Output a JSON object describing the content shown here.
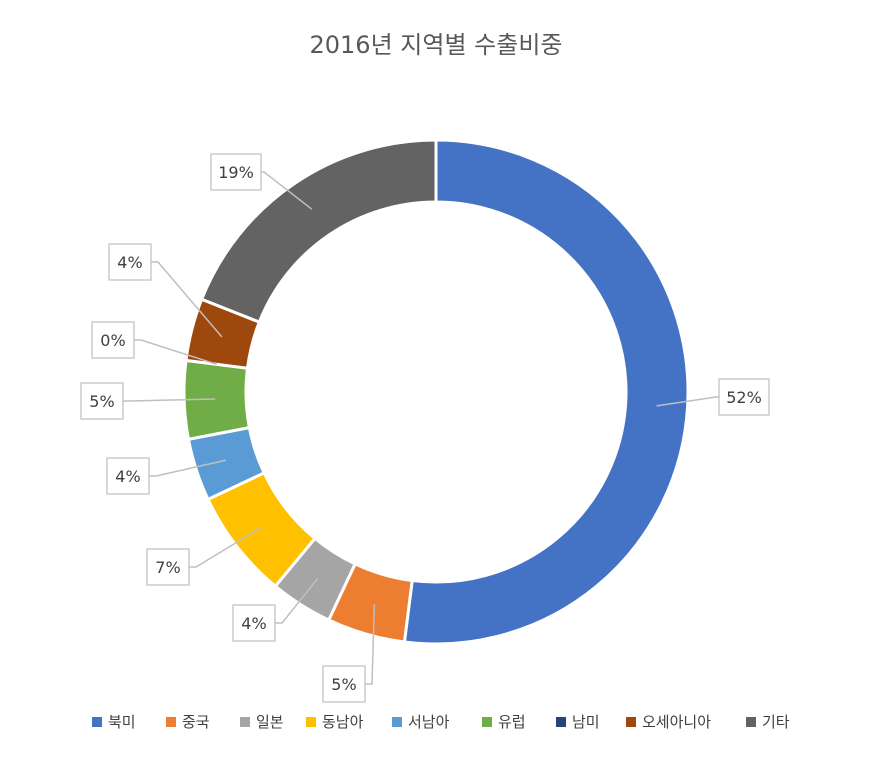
{
  "chart_data": {
    "type": "pie",
    "title": "2016년 지역별 수출비중",
    "categories": [
      "북미",
      "중국",
      "일본",
      "동남아",
      "서남아",
      "유럽",
      "남미",
      "오세아니아",
      "기타"
    ],
    "values": [
      52,
      5,
      4,
      7,
      4,
      5,
      0,
      4,
      19
    ],
    "value_labels": [
      "52%",
      "5%",
      "4%",
      "7%",
      "4%",
      "5%",
      "0%",
      "4%",
      "19%"
    ],
    "colors": [
      "#4472C4",
      "#ED7D31",
      "#A5A5A5",
      "#FFC000",
      "#5B9BD5",
      "#70AD47",
      "#264478",
      "#9E480E",
      "#636363"
    ],
    "legend_position": "bottom",
    "donut": true
  }
}
